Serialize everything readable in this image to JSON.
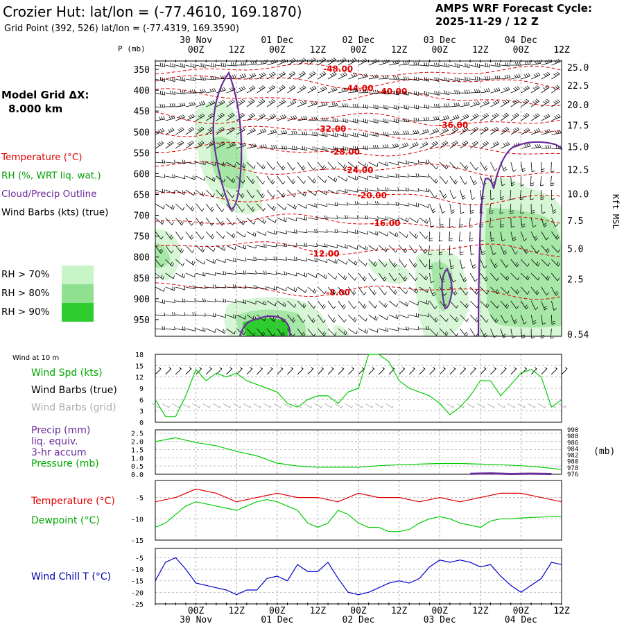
{
  "header": {
    "title": "Crozier Hut:  lat/lon = (-77.4610, 169.1870)",
    "grid_point": "Grid Point (392, 526) lat/lon = (-77.4319, 169.3590)",
    "cycle_line1": "AMPS WRF Forecast Cycle:",
    "cycle_line2": "2025-11-29 / 12  Z"
  },
  "time_axis": {
    "ticks": [
      "00Z",
      "12Z",
      "00Z",
      "12Z",
      "00Z",
      "12Z",
      "00Z",
      "12Z",
      "00Z",
      "12Z"
    ],
    "dates": [
      "30 Nov",
      "01 Dec",
      "02 Dec",
      "03 Dec",
      "04 Dec"
    ],
    "dates_bottom": [
      "30 Nov",
      "01 Dec",
      "02 Dec",
      "03 Dec",
      "04 Dec"
    ],
    "start_hour": 12,
    "end_hour": 132,
    "minor_step_hours": 3
  },
  "left_panel": {
    "model_grid_label": "Model Grid ΔX:",
    "model_grid_value": "8.000 km",
    "legend": [
      {
        "text": "Temperature (°C)",
        "color": "#e00000"
      },
      {
        "text": "RH (%, WRT liq. wat.)",
        "color": "#00a000"
      },
      {
        "text": "Cloud/Precip Outline",
        "color": "#6a2b9a"
      },
      {
        "text": "Wind Barbs (kts) (true)",
        "color": "#000000"
      }
    ],
    "rh_legend": [
      {
        "text": "RH > 70%",
        "color": "#c8f5c8"
      },
      {
        "text": "RH > 80%",
        "color": "#8fe08f"
      },
      {
        "text": "RH > 90%",
        "color": "#2ecc2e"
      }
    ]
  },
  "chart_data": [
    {
      "type": "contour",
      "name": "cross-section",
      "ylabel": "P (mb)",
      "ylabel_right": "Kft MSL",
      "p_ticks": [
        350,
        400,
        450,
        500,
        550,
        600,
        650,
        700,
        750,
        800,
        850,
        900,
        950
      ],
      "ylim": [
        990,
        330
      ],
      "kft_ticks": [
        {
          "label": "25.0",
          "p": 345
        },
        {
          "label": "22.5",
          "p": 388
        },
        {
          "label": "20.0",
          "p": 435
        },
        {
          "label": "17.5",
          "p": 484
        },
        {
          "label": "15.0",
          "p": 535
        },
        {
          "label": "12.5",
          "p": 590
        },
        {
          "label": "10.0",
          "p": 648
        },
        {
          "label": "7.5",
          "p": 712
        },
        {
          "label": "5.0",
          "p": 780
        },
        {
          "label": "2.5",
          "p": 853
        },
        {
          "label": "0.54",
          "p": 985
        }
      ],
      "temperature_contours": [
        {
          "label": "-48.00",
          "p_base": 353,
          "label_hour": 66
        },
        {
          "label": "-44.00",
          "p_base": 380,
          "label_hour": 72
        },
        {
          "label": "-40.00",
          "p_base": 418,
          "label_hour": 82
        },
        {
          "label": "-36.00",
          "p_base": 470,
          "label_hour": 100
        },
        {
          "label": "-32.00",
          "p_base": 500,
          "label_hour": 64
        },
        {
          "label": "-28.00",
          "p_base": 545,
          "label_hour": 68
        },
        {
          "label": "-24.00",
          "p_base": 590,
          "label_hour": 72
        },
        {
          "label": "-20.00",
          "p_base": 655,
          "label_hour": 76
        },
        {
          "label": "-16.00",
          "p_base": 715,
          "label_hour": 80
        },
        {
          "label": "-12.00",
          "p_base": 780,
          "label_hour": 62
        },
        {
          "label": "-8.00",
          "p_base": 880,
          "label_hour": 66
        }
      ]
    },
    {
      "type": "line",
      "name": "wind-10m",
      "title": "Wind at 10 m",
      "labels": [
        {
          "text": "Wind Spd (kts)",
          "color": "#00aa00"
        },
        {
          "text": "Wind Barbs (true)",
          "color": "#000000"
        },
        {
          "text": "Wind Barbs (grid)",
          "color": "#aaaaaa"
        }
      ],
      "y_ticks": [
        0,
        3,
        6,
        9,
        12,
        15,
        18
      ],
      "ylim": [
        0,
        18
      ],
      "series": [
        {
          "color": "#00cc00",
          "x": [
            12,
            15,
            18,
            21,
            24,
            27,
            30,
            33,
            36,
            39,
            42,
            45,
            48,
            51,
            54,
            57,
            60,
            63,
            66,
            69,
            72,
            75,
            78,
            81,
            84,
            87,
            90,
            93,
            96,
            99,
            102,
            105,
            108,
            111,
            114,
            117,
            120,
            123,
            126,
            129,
            132
          ],
          "values": [
            6,
            1.5,
            1.5,
            7,
            14,
            11,
            13,
            12,
            13,
            11,
            10,
            9,
            8,
            5,
            4,
            6,
            7,
            7,
            5,
            8,
            9,
            18,
            18,
            16,
            11,
            9,
            8,
            7,
            5,
            2,
            4,
            7,
            11,
            11,
            7,
            10,
            13,
            14,
            12,
            4,
            6
          ]
        }
      ]
    },
    {
      "type": "line",
      "name": "precip-pressure",
      "labels": [
        {
          "text": "Precip (mm)",
          "color": "#6a2b9a"
        },
        {
          "text": "liq. equiv.",
          "color": "#6a2b9a"
        },
        {
          "text": "3-hr accum",
          "color": "#6a2b9a"
        },
        {
          "text": "Pressure (mb)",
          "color": "#00aa00"
        }
      ],
      "y_ticks_left": [
        "0.0",
        "0.5",
        "1.0",
        "1.5",
        "2.0",
        "2.5"
      ],
      "y_ticks_right": [
        "976",
        "978",
        "980",
        "982",
        "984",
        "986",
        "988",
        "990"
      ],
      "unit_right": "(mb)",
      "ylim_pressure": [
        976,
        990
      ],
      "ylim_precip": [
        0,
        2.7
      ],
      "series": [
        {
          "name": "Pressure (mb)",
          "color": "#00cc00",
          "x": [
            12,
            18,
            24,
            30,
            36,
            42,
            48,
            54,
            60,
            66,
            72,
            78,
            84,
            90,
            96,
            102,
            108,
            114,
            120,
            126,
            132
          ],
          "values": [
            986.3,
            987.5,
            986.0,
            985.0,
            983.2,
            981.8,
            979.5,
            978.6,
            978.2,
            978.2,
            978.2,
            978.7,
            979.0,
            979.2,
            979.4,
            979.4,
            979.2,
            979.0,
            978.7,
            978.2,
            977.5
          ]
        },
        {
          "name": "Precip (mm)",
          "color": "#6a2b9a",
          "x": [
            105,
            111,
            117,
            123,
            129
          ],
          "values": [
            0.03,
            0.05,
            0.02,
            0.04,
            0.02
          ]
        }
      ]
    },
    {
      "type": "line",
      "name": "temperature-dewpoint",
      "labels": [
        {
          "text": "Temperature (°C)",
          "color": "#e00000"
        },
        {
          "text": "Dewpoint (°C)",
          "color": "#00aa00"
        }
      ],
      "y_ticks": [
        -15,
        -10,
        -5
      ],
      "ylim": [
        -15,
        -1
      ],
      "series": [
        {
          "name": "Temperature",
          "color": "#e00000",
          "x": [
            12,
            18,
            24,
            30,
            36,
            42,
            48,
            54,
            60,
            66,
            72,
            78,
            84,
            90,
            96,
            102,
            108,
            114,
            120,
            126,
            132
          ],
          "values": [
            -6,
            -5,
            -3,
            -4,
            -6,
            -5,
            -4,
            -5,
            -5,
            -6,
            -4,
            -5,
            -5,
            -6,
            -5,
            -6,
            -5,
            -4,
            -4,
            -5,
            -6
          ]
        },
        {
          "name": "Dewpoint",
          "color": "#00cc00",
          "x": [
            12,
            15,
            18,
            21,
            24,
            27,
            30,
            33,
            36,
            39,
            42,
            45,
            48,
            51,
            54,
            57,
            60,
            63,
            66,
            69,
            72,
            75,
            78,
            81,
            84,
            87,
            90,
            93,
            96,
            99,
            102,
            105,
            108,
            111,
            114,
            117,
            120,
            123,
            126,
            129,
            132
          ],
          "values": [
            -12,
            -11,
            -9,
            -7,
            -6,
            -6.5,
            -7,
            -7.5,
            -8,
            -7,
            -6,
            -5.5,
            -6,
            -7,
            -8,
            -11,
            -12,
            -11,
            -8,
            -9,
            -11,
            -12,
            -12,
            -13,
            -13,
            -12.5,
            -11,
            -10,
            -9.5,
            -10,
            -11,
            -11.5,
            -12,
            -10.5,
            -10,
            -10,
            -9.8,
            -9.7,
            -9.6,
            -9.5,
            -9.4
          ]
        }
      ]
    },
    {
      "type": "line",
      "name": "wind-chill",
      "labels": [
        {
          "text": "Wind Chill T (°C)",
          "color": "#0000aa"
        }
      ],
      "y_ticks": [
        -25,
        -20,
        -15,
        -10,
        -5
      ],
      "ylim": [
        -25,
        -1
      ],
      "series": [
        {
          "name": "Wind Chill",
          "color": "#0000cc",
          "x": [
            12,
            15,
            18,
            21,
            24,
            27,
            30,
            33,
            36,
            39,
            42,
            45,
            48,
            51,
            54,
            57,
            60,
            63,
            66,
            69,
            72,
            75,
            78,
            81,
            84,
            87,
            90,
            93,
            96,
            99,
            102,
            105,
            108,
            111,
            114,
            117,
            120,
            123,
            126,
            129,
            132
          ],
          "values": [
            -15,
            -7,
            -5,
            -10,
            -16,
            -17,
            -18,
            -19,
            -21,
            -19,
            -19,
            -14,
            -13,
            -15,
            -8,
            -11,
            -11,
            -7,
            -14,
            -20,
            -21,
            -20,
            -18,
            -16,
            -15,
            -16,
            -14,
            -9,
            -6,
            -7,
            -6,
            -7,
            -9,
            -8,
            -13,
            -17,
            -20,
            -17,
            -14,
            -7,
            -8
          ]
        }
      ]
    }
  ]
}
